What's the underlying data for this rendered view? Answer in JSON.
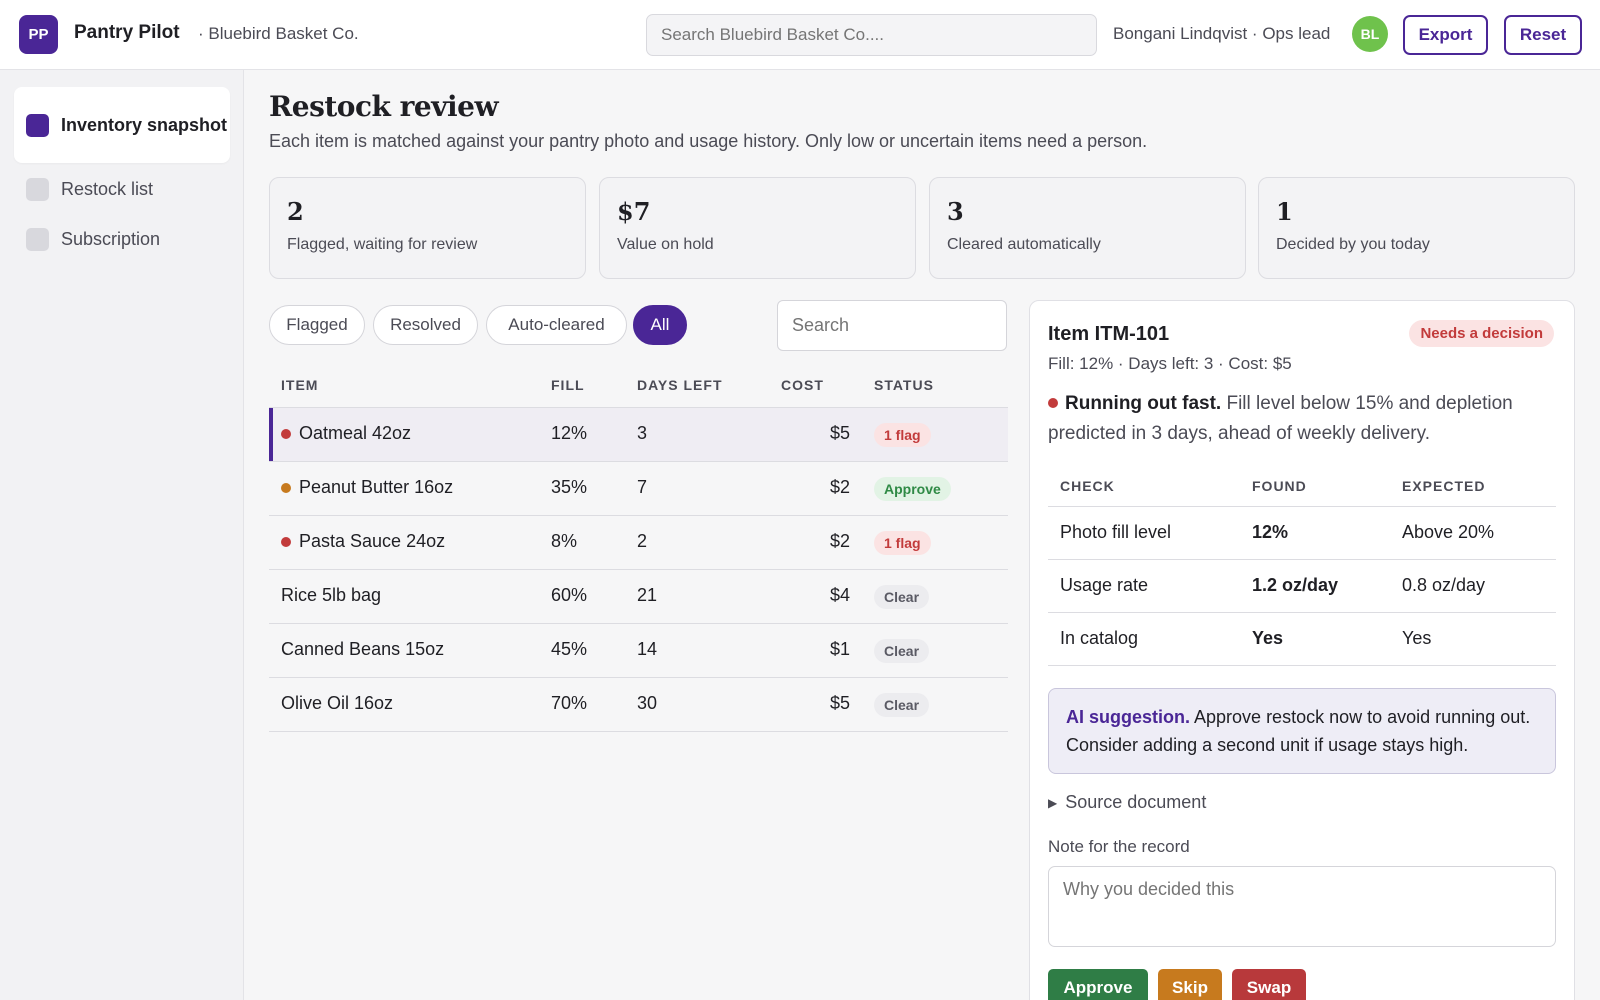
{
  "header": {
    "logo_initials": "PP",
    "app_name": "Pantry Pilot",
    "org": "· Bluebird Basket Co.",
    "search_placeholder": "Search Bluebird Basket Co....",
    "user": "Bongani Lindqvist · Ops lead",
    "avatar_initials": "BL",
    "export_label": "Export",
    "reset_label": "Reset"
  },
  "sidebar": {
    "items": [
      {
        "label": "Inventory snapshot",
        "active": true
      },
      {
        "label": "Restock list",
        "active": false
      },
      {
        "label": "Subscription",
        "active": false
      }
    ]
  },
  "main": {
    "title": "Restock review",
    "subtitle": "Each item is matched against your pantry photo and usage history. Only low or uncertain items need a person."
  },
  "stats": [
    {
      "value": "2",
      "label": "Flagged, waiting for review"
    },
    {
      "value": "$7",
      "label": "Value on hold"
    },
    {
      "value": "3",
      "label": "Cleared automatically"
    },
    {
      "value": "1",
      "label": "Decided by you today"
    }
  ],
  "filters": [
    {
      "label": "Flagged",
      "active": false
    },
    {
      "label": "Resolved",
      "active": false
    },
    {
      "label": "Auto-cleared",
      "active": false
    },
    {
      "label": "All",
      "active": true
    }
  ],
  "table_search_placeholder": "Search",
  "table": {
    "headers": [
      "ITEM",
      "FILL",
      "DAYS LEFT",
      "COST",
      "STATUS"
    ],
    "rows": [
      {
        "item": "Oatmeal 42oz",
        "fill": "12%",
        "days": "3",
        "cost": "$5",
        "status": "1 flag",
        "status_type": "flag",
        "dot": "#c23b3b"
      },
      {
        "item": "Peanut Butter 16oz",
        "fill": "35%",
        "days": "7",
        "cost": "$2",
        "status": "Approve",
        "status_type": "approve",
        "dot": "#c77a1e"
      },
      {
        "item": "Pasta Sauce 24oz",
        "fill": "8%",
        "days": "2",
        "cost": "$2",
        "status": "1 flag",
        "status_type": "flag",
        "dot": "#c23b3b"
      },
      {
        "item": "Rice 5lb bag",
        "fill": "60%",
        "days": "21",
        "cost": "$4",
        "status": "Clear",
        "status_type": "clear",
        "dot": ""
      },
      {
        "item": "Canned Beans 15oz",
        "fill": "45%",
        "days": "14",
        "cost": "$1",
        "status": "Clear",
        "status_type": "clear",
        "dot": ""
      },
      {
        "item": "Olive Oil 16oz",
        "fill": "70%",
        "days": "30",
        "cost": "$5",
        "status": "Clear",
        "status_type": "clear",
        "dot": ""
      }
    ]
  },
  "detail": {
    "title": "Item ITM-101",
    "pill": "Needs a decision",
    "meta": "Fill: 12% · Days left: 3 · Cost: $5",
    "alert_strong": "Running out fast.",
    "alert_text": " Fill level below 15% and depletion predicted in 3 days, ahead of weekly delivery.",
    "checks_headers": [
      "CHECK",
      "FOUND",
      "EXPECTED"
    ],
    "checks": [
      {
        "check": "Photo fill level",
        "found": "12%",
        "expected": "Above 20%",
        "ok": false
      },
      {
        "check": "Usage rate",
        "found": "1.2 oz/day",
        "expected": "0.8 oz/day",
        "ok": false
      },
      {
        "check": "In catalog",
        "found": "Yes",
        "expected": "Yes",
        "ok": true
      }
    ],
    "ai_label": "AI suggestion.",
    "ai_text": " Approve restock now to avoid running out. Consider adding a second unit if usage stays high.",
    "source_label": "Source document",
    "note_label": "Note for the record",
    "note_placeholder": "Why you decided this",
    "approve_label": "Approve",
    "skip_label": "Skip",
    "swap_label": "Swap"
  },
  "colors": {
    "accent": "#4a2696",
    "danger": "#c23b3b",
    "success": "#2f8a45",
    "warning": "#c77a1e"
  }
}
